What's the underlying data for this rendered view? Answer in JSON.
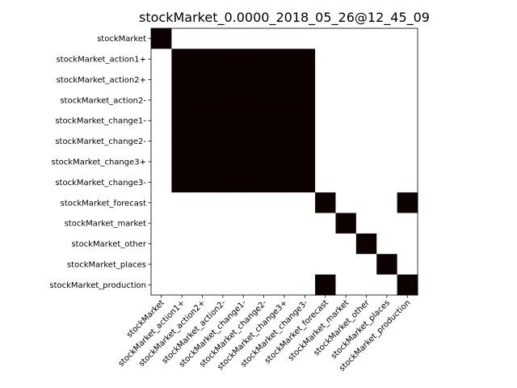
{
  "chart_data": {
    "type": "heatmap",
    "title": "stockMarket_0.0000_2018_05_26@12_45_09",
    "xlabel": "",
    "ylabel": "",
    "labels": [
      "stockMarket",
      "stockMarket_action1+",
      "stockMarket_action2+",
      "stockMarket_action2-",
      "stockMarket_change1-",
      "stockMarket_change2-",
      "stockMarket_change3+",
      "stockMarket_change3-",
      "stockMarket_forecast",
      "stockMarket_market",
      "stockMarket_other",
      "stockMarket_places",
      "stockMarket_production"
    ],
    "matrix": [
      [
        1,
        0,
        0,
        0,
        0,
        0,
        0,
        0,
        0,
        0,
        0,
        0,
        0
      ],
      [
        0,
        1,
        1,
        1,
        1,
        1,
        1,
        1,
        0,
        0,
        0,
        0,
        0
      ],
      [
        0,
        1,
        1,
        1,
        1,
        1,
        1,
        1,
        0,
        0,
        0,
        0,
        0
      ],
      [
        0,
        1,
        1,
        1,
        1,
        1,
        1,
        1,
        0,
        0,
        0,
        0,
        0
      ],
      [
        0,
        1,
        1,
        1,
        1,
        1,
        1,
        1,
        0,
        0,
        0,
        0,
        0
      ],
      [
        0,
        1,
        1,
        1,
        1,
        1,
        1,
        1,
        0,
        0,
        0,
        0,
        0
      ],
      [
        0,
        1,
        1,
        1,
        1,
        1,
        1,
        1,
        0,
        0,
        0,
        0,
        0
      ],
      [
        0,
        1,
        1,
        1,
        1,
        1,
        1,
        1,
        0,
        0,
        0,
        0,
        0
      ],
      [
        0,
        0,
        0,
        0,
        0,
        0,
        0,
        0,
        1,
        0,
        0,
        0,
        1
      ],
      [
        0,
        0,
        0,
        0,
        0,
        0,
        0,
        0,
        0,
        1,
        0,
        0,
        0
      ],
      [
        0,
        0,
        0,
        0,
        0,
        0,
        0,
        0,
        0,
        0,
        1,
        0,
        0
      ],
      [
        0,
        0,
        0,
        0,
        0,
        0,
        0,
        0,
        0,
        0,
        0,
        1,
        0
      ],
      [
        0,
        0,
        0,
        0,
        0,
        0,
        0,
        0,
        1,
        0,
        0,
        0,
        1
      ]
    ],
    "colors": {
      "on": "#0d0202",
      "off": "#ffffff"
    },
    "grid": false,
    "legend": "none"
  }
}
